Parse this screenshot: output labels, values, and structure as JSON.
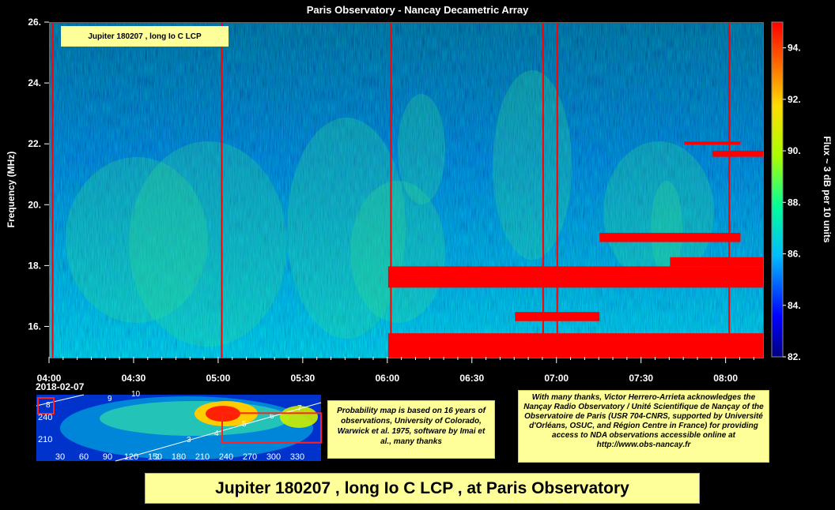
{
  "title": "Paris Observatory - Nancay Decametric Array",
  "label_box": "Jupiter 180207 , long Io C LCP",
  "date": "2018-02-07",
  "footer": "Jupiter 180207 , long Io C LCP , at Paris Observatory",
  "note_left": "Probability map is based on 16 years of observations, University of Colorado, Warwick et al. 1975, software by Imai et al., many thanks",
  "note_right": "With many thanks, Victor Herrero-Arrieta acknowledges the Nançay Radio Observatory / Unité Scientifique de Nançay of the Observatoire de Paris (USR 704-CNRS, supported by Université d'Orléans, OSUC, and Région Centre in France) for providing access to NDA observations accessible online at http://www.obs-nancay.fr",
  "colors": {
    "background": "#000000",
    "note": "#ffff99",
    "emission": "#ff0000",
    "spectrum_low": "#00008b",
    "spectrum_mid": "#00cc88"
  },
  "chart_data": [
    {
      "type": "heatmap",
      "title": "Paris Observatory - Nancay Decametric Array",
      "ylabel": "Frequency (MHz)",
      "x_ticks": [
        "04:00",
        "04:30",
        "05:00",
        "05:30",
        "06:00",
        "06:30",
        "07:00",
        "07:30",
        "08:00"
      ],
      "x_range": [
        "04:00",
        "08:13"
      ],
      "y_ticks": [
        "16.",
        "18.",
        "20.",
        "22.",
        "24.",
        "26."
      ],
      "y_range": [
        15,
        26
      ],
      "colorbar": {
        "label": "Flux ~ 3 dB per 10 units",
        "ticks": [
          "82.",
          "84.",
          "86.",
          "88.",
          "90.",
          "92.",
          "94."
        ],
        "range": [
          82,
          95
        ]
      },
      "interference_lines": [
        "04:01",
        "05:01",
        "06:01",
        "06:55",
        "07:00",
        "08:01"
      ],
      "emission_bands": [
        {
          "start": "06:00",
          "end": "08:13",
          "freq_low": 17.3,
          "freq_high": 18.0
        },
        {
          "start": "06:00",
          "end": "08:13",
          "freq_low": 15.0,
          "freq_high": 15.8
        },
        {
          "start": "06:45",
          "end": "07:15",
          "freq_low": 16.2,
          "freq_high": 16.5
        },
        {
          "start": "07:40",
          "end": "08:13",
          "freq_low": 18.0,
          "freq_high": 18.3
        },
        {
          "start": "07:55",
          "end": "08:13",
          "freq_low": 21.6,
          "freq_high": 21.8
        },
        {
          "start": "07:45",
          "end": "08:05",
          "freq_low": 22.0,
          "freq_high": 22.1
        },
        {
          "start": "07:15",
          "end": "08:05",
          "freq_low": 18.8,
          "freq_high": 19.1
        }
      ]
    },
    {
      "type": "heatmap",
      "x_ticks": [
        "30",
        "60",
        "90",
        "120",
        "150",
        "180",
        "210",
        "240",
        "270",
        "300",
        "330"
      ],
      "x_range": [
        0,
        360
      ],
      "y_ticks": [
        "240",
        "210"
      ],
      "y_range": [
        180,
        270
      ],
      "track_labels": [
        "9",
        "10",
        "2",
        "3",
        "4",
        "5",
        "6",
        "7",
        "8"
      ],
      "selection_box": {
        "x_range": [
          235,
          360
        ],
        "y_range": [
          205,
          245
        ]
      }
    }
  ]
}
